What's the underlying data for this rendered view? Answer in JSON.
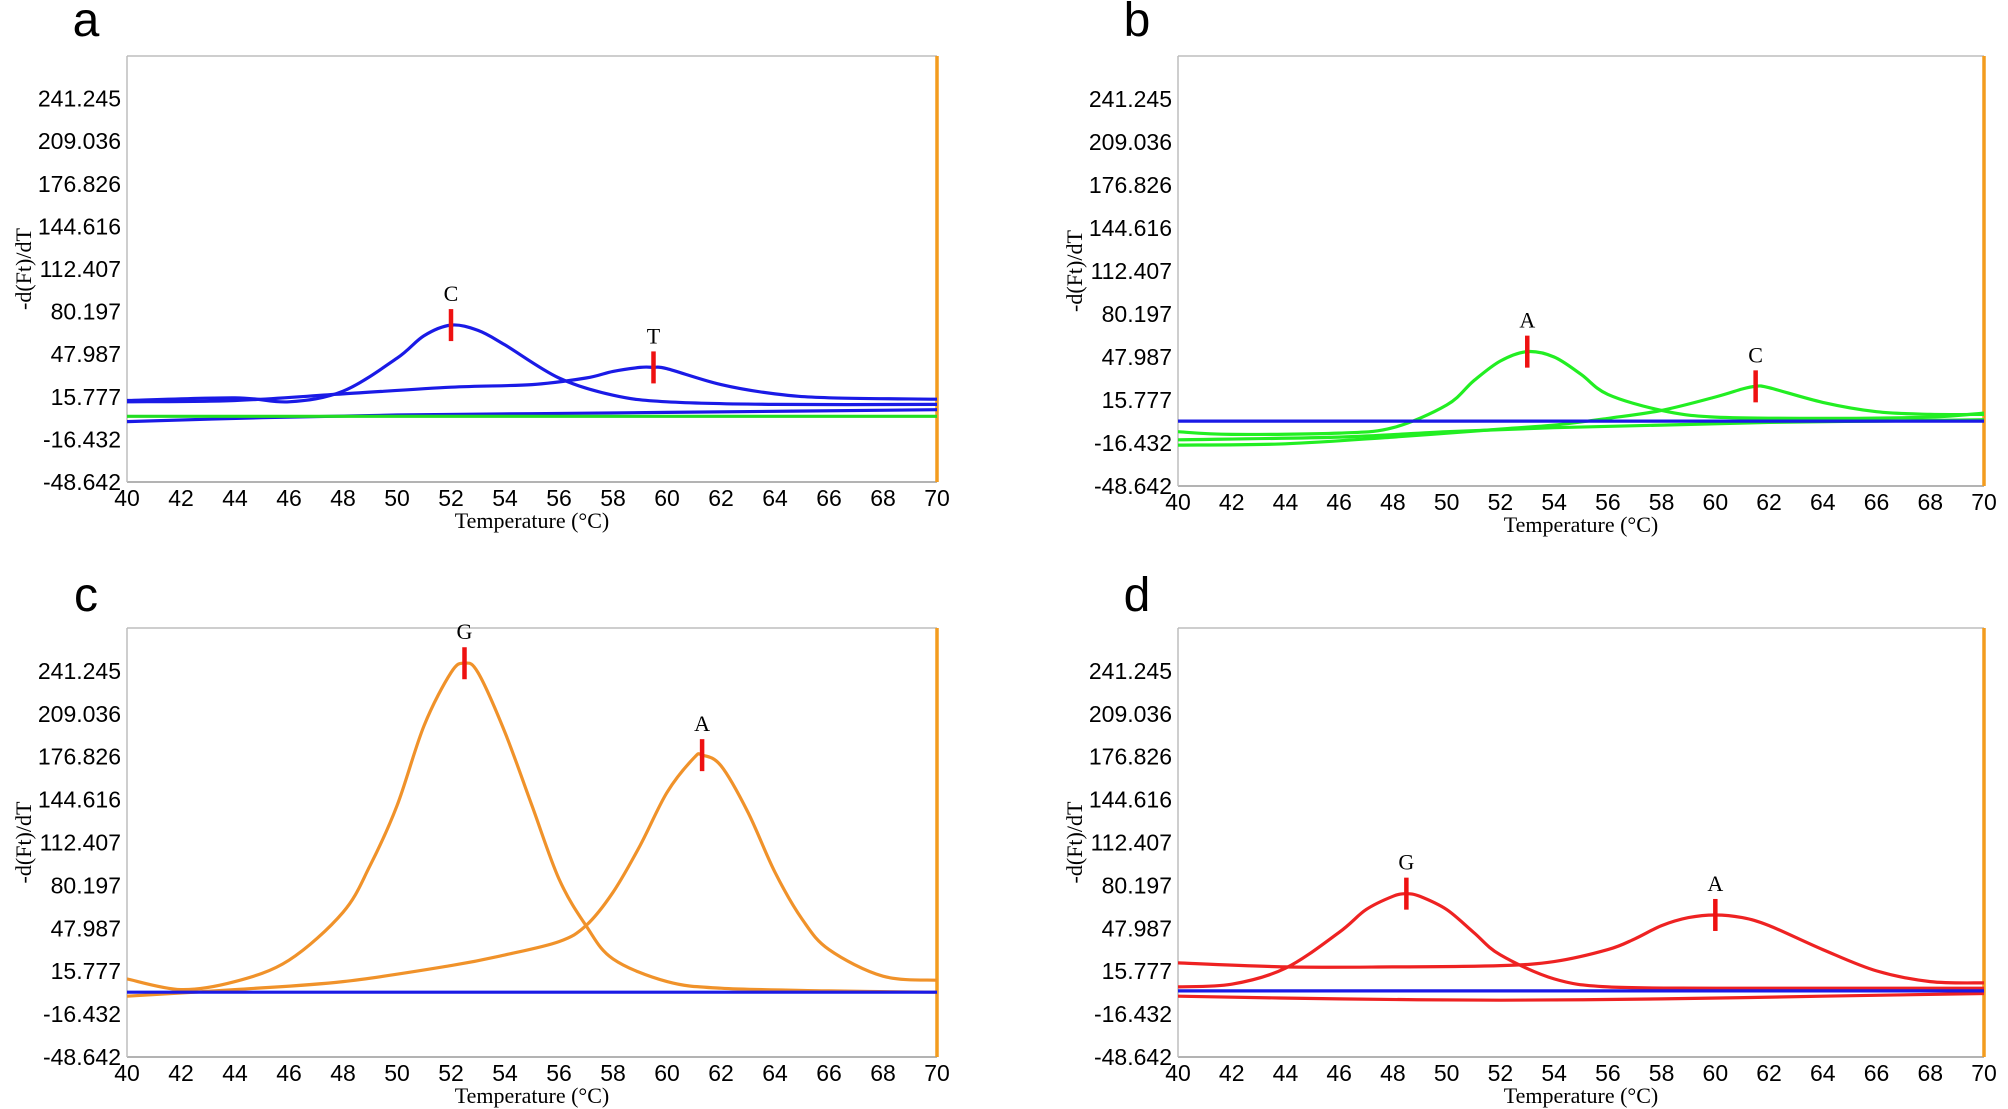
{
  "chart_data": [
    {
      "type": "line",
      "panel": "a",
      "xlabel": "Temperature (°C)",
      "ylabel": "-d(Ft)/dT",
      "xlim": [
        40,
        70
      ],
      "ylim": [
        -48.642,
        273.455
      ],
      "x_ticks": [
        "40",
        "42",
        "44",
        "46",
        "48",
        "50",
        "52",
        "54",
        "56",
        "58",
        "60",
        "62",
        "64",
        "66",
        "68",
        "70"
      ],
      "y_ticks": [
        "241.245",
        "209.036",
        "176.826",
        "144.616",
        "112.407",
        "80.197",
        "47.987",
        "15.777",
        "-16.432",
        "-48.642"
      ],
      "series": [
        {
          "name": "C peak",
          "color": "#1a1ae6",
          "points": [
            [
              40,
              13
            ],
            [
              44,
              15
            ],
            [
              46,
              12
            ],
            [
              48,
              20
            ],
            [
              50,
              45
            ],
            [
              51,
              62
            ],
            [
              52,
              70
            ],
            [
              53,
              66
            ],
            [
              54,
              55
            ],
            [
              56,
              30
            ],
            [
              58,
              17
            ],
            [
              60,
              12
            ],
            [
              64,
              10
            ],
            [
              70,
              10
            ]
          ]
        },
        {
          "name": "T peak",
          "color": "#1a1ae6",
          "points": [
            [
              40,
              12
            ],
            [
              44,
              13
            ],
            [
              48,
              18
            ],
            [
              52,
              23
            ],
            [
              55,
              25
            ],
            [
              57,
              30
            ],
            [
              58,
              35
            ],
            [
              59,
              38
            ],
            [
              59.5,
              38
            ],
            [
              60,
              37
            ],
            [
              62,
              25
            ],
            [
              64,
              18
            ],
            [
              66,
              15
            ],
            [
              70,
              14
            ]
          ]
        },
        {
          "name": "baseline blue",
          "color": "#1a1ae6",
          "points": [
            [
              40,
              -3
            ],
            [
              45,
              0
            ],
            [
              50,
              2
            ],
            [
              55,
              3
            ],
            [
              60,
              4
            ],
            [
              70,
              6
            ]
          ]
        },
        {
          "name": "baseline green",
          "color": "#22dd22",
          "points": [
            [
              40,
              1
            ],
            [
              70,
              1
            ]
          ]
        }
      ],
      "peaks": [
        {
          "label": "C",
          "x": 52,
          "y": 70
        },
        {
          "label": "T",
          "x": 59.5,
          "y": 38
        }
      ]
    },
    {
      "type": "line",
      "panel": "b",
      "xlabel": "Temperature (°C)",
      "ylabel": "-d(Ft)/dT",
      "xlim": [
        40,
        70
      ],
      "ylim": [
        -48.642,
        273.455
      ],
      "x_ticks": [
        "40",
        "42",
        "44",
        "46",
        "48",
        "50",
        "52",
        "54",
        "56",
        "58",
        "60",
        "62",
        "64",
        "66",
        "68",
        "70"
      ],
      "y_ticks": [
        "241.245",
        "209.036",
        "176.826",
        "144.616",
        "112.407",
        "80.197",
        "47.987",
        "15.777",
        "-16.432",
        "-48.642"
      ],
      "series": [
        {
          "name": "A peak",
          "color": "#22ee22",
          "points": [
            [
              40,
              -8
            ],
            [
              42,
              -10
            ],
            [
              46,
              -9
            ],
            [
              48,
              -5
            ],
            [
              50,
              12
            ],
            [
              51,
              30
            ],
            [
              52,
              45
            ],
            [
              53,
              52
            ],
            [
              54,
              48
            ],
            [
              55,
              35
            ],
            [
              56,
              20
            ],
            [
              58,
              8
            ],
            [
              60,
              3
            ],
            [
              64,
              2
            ],
            [
              68,
              3
            ],
            [
              70,
              6
            ]
          ]
        },
        {
          "name": "C peak",
          "color": "#22ee22",
          "points": [
            [
              40,
              -18
            ],
            [
              44,
              -17
            ],
            [
              48,
              -12
            ],
            [
              52,
              -6
            ],
            [
              54,
              -3
            ],
            [
              56,
              2
            ],
            [
              58,
              8
            ],
            [
              60,
              18
            ],
            [
              61,
              24
            ],
            [
              61.5,
              26
            ],
            [
              62,
              25
            ],
            [
              64,
              14
            ],
            [
              66,
              7
            ],
            [
              68,
              5
            ],
            [
              70,
              5
            ]
          ]
        },
        {
          "name": "flat green",
          "color": "#22ee22",
          "points": [
            [
              40,
              -14
            ],
            [
              46,
              -12
            ],
            [
              50,
              -8
            ],
            [
              54,
              -5
            ],
            [
              58,
              -3
            ],
            [
              62,
              -1
            ],
            [
              66,
              0
            ],
            [
              70,
              1
            ]
          ]
        },
        {
          "name": "baseline blue",
          "color": "#1a1ae6",
          "points": [
            [
              40,
              0
            ],
            [
              70,
              0
            ]
          ]
        }
      ],
      "peaks": [
        {
          "label": "A",
          "x": 53,
          "y": 52
        },
        {
          "label": "C",
          "x": 61.5,
          "y": 26
        }
      ]
    },
    {
      "type": "line",
      "panel": "c",
      "xlabel": "Temperature (°C)",
      "ylabel": "-d(Ft)/dT",
      "xlim": [
        40,
        70
      ],
      "ylim": [
        -48.642,
        273.455
      ],
      "x_ticks": [
        "40",
        "42",
        "44",
        "46",
        "48",
        "50",
        "52",
        "54",
        "56",
        "58",
        "60",
        "62",
        "64",
        "66",
        "68",
        "70"
      ],
      "y_ticks": [
        "241.245",
        "209.036",
        "176.826",
        "144.616",
        "112.407",
        "80.197",
        "47.987",
        "15.777",
        "-16.432",
        "-48.642"
      ],
      "series": [
        {
          "name": "G peak",
          "color": "#f0922a",
          "points": [
            [
              40,
              10
            ],
            [
              42,
              2
            ],
            [
              44,
              8
            ],
            [
              46,
              24
            ],
            [
              48,
              60
            ],
            [
              49,
              95
            ],
            [
              50,
              140
            ],
            [
              51,
              200
            ],
            [
              52,
              240
            ],
            [
              52.5,
              247
            ],
            [
              53,
              240
            ],
            [
              54,
              195
            ],
            [
              55,
              140
            ],
            [
              56,
              85
            ],
            [
              57,
              50
            ],
            [
              58,
              25
            ],
            [
              60,
              8
            ],
            [
              62,
              3
            ],
            [
              66,
              1
            ],
            [
              70,
              0
            ]
          ]
        },
        {
          "name": "A peak",
          "color": "#f0922a",
          "points": [
            [
              40,
              -3
            ],
            [
              44,
              2
            ],
            [
              48,
              8
            ],
            [
              52,
              20
            ],
            [
              54,
              28
            ],
            [
              56,
              38
            ],
            [
              57,
              50
            ],
            [
              58,
              75
            ],
            [
              59,
              110
            ],
            [
              60,
              150
            ],
            [
              61,
              176
            ],
            [
              61.3,
              178
            ],
            [
              62,
              170
            ],
            [
              63,
              135
            ],
            [
              64,
              90
            ],
            [
              65,
              55
            ],
            [
              66,
              32
            ],
            [
              68,
              12
            ],
            [
              70,
              9
            ]
          ]
        },
        {
          "name": "baseline blue",
          "color": "#1a1ae6",
          "points": [
            [
              40,
              0
            ],
            [
              70,
              0
            ]
          ]
        }
      ],
      "peaks": [
        {
          "label": "G",
          "x": 52.5,
          "y": 247
        },
        {
          "label": "A",
          "x": 61.3,
          "y": 178
        }
      ]
    },
    {
      "type": "line",
      "panel": "d",
      "xlabel": "Temperature (°C)",
      "ylabel": "-d(Ft)/dT",
      "xlim": [
        40,
        70
      ],
      "ylim": [
        -48.642,
        273.455
      ],
      "x_ticks": [
        "40",
        "42",
        "44",
        "46",
        "48",
        "50",
        "52",
        "54",
        "56",
        "58",
        "60",
        "62",
        "64",
        "66",
        "68",
        "70"
      ],
      "y_ticks": [
        "241.245",
        "209.036",
        "176.826",
        "144.616",
        "112.407",
        "80.197",
        "47.987",
        "15.777",
        "-16.432",
        "-48.642"
      ],
      "series": [
        {
          "name": "G peak",
          "color": "#ee2222",
          "points": [
            [
              40,
              4
            ],
            [
              42,
              6
            ],
            [
              44,
              18
            ],
            [
              46,
              45
            ],
            [
              47,
              62
            ],
            [
              48,
              72
            ],
            [
              48.5,
              74
            ],
            [
              49,
              72
            ],
            [
              50,
              62
            ],
            [
              51,
              45
            ],
            [
              52,
              28
            ],
            [
              54,
              10
            ],
            [
              56,
              4
            ],
            [
              60,
              3
            ],
            [
              70,
              3
            ]
          ]
        },
        {
          "name": "A peak",
          "color": "#ee2222",
          "points": [
            [
              40,
              22
            ],
            [
              44,
              19
            ],
            [
              48,
              19
            ],
            [
              52,
              20
            ],
            [
              54,
              23
            ],
            [
              56,
              32
            ],
            [
              57,
              40
            ],
            [
              58,
              50
            ],
            [
              59,
              56
            ],
            [
              60,
              58
            ],
            [
              61,
              56
            ],
            [
              62,
              50
            ],
            [
              64,
              32
            ],
            [
              66,
              16
            ],
            [
              68,
              8
            ],
            [
              70,
              7
            ]
          ]
        },
        {
          "name": "low red",
          "color": "#ee2222",
          "points": [
            [
              40,
              -3
            ],
            [
              46,
              -5
            ],
            [
              52,
              -6
            ],
            [
              58,
              -5
            ],
            [
              64,
              -3
            ],
            [
              70,
              -1
            ]
          ]
        },
        {
          "name": "baseline blue",
          "color": "#1a1ae6",
          "points": [
            [
              40,
              1
            ],
            [
              70,
              1
            ]
          ]
        }
      ],
      "peaks": [
        {
          "label": "G",
          "x": 48.5,
          "y": 74
        },
        {
          "label": "A",
          "x": 60,
          "y": 58
        }
      ]
    }
  ]
}
